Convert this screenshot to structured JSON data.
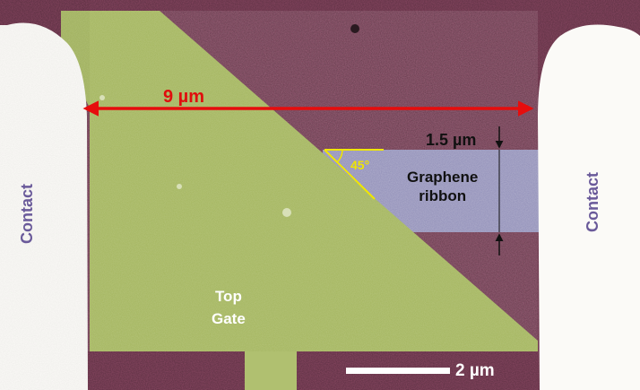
{
  "labels": {
    "contact_left": "Contact",
    "contact_right": "Contact",
    "device_width": "9 µm",
    "ribbon_width": "1.5 µm",
    "angle": "45°",
    "ribbon_line1": "Graphene",
    "ribbon_line2": "ribbon",
    "gate_line1": "Top",
    "gate_line2": "Gate",
    "scale_bar": "2 µm"
  },
  "colors": {
    "substrate": "#8a4863",
    "contact": "#fbfaf7",
    "top_gate": "#a3b55c",
    "graphene_ribbon": "#8e8cb6",
    "dimension_arrow": "#e60d0d",
    "angle_marker": "#f0e600",
    "contact_label": "#6a5a9a"
  }
}
